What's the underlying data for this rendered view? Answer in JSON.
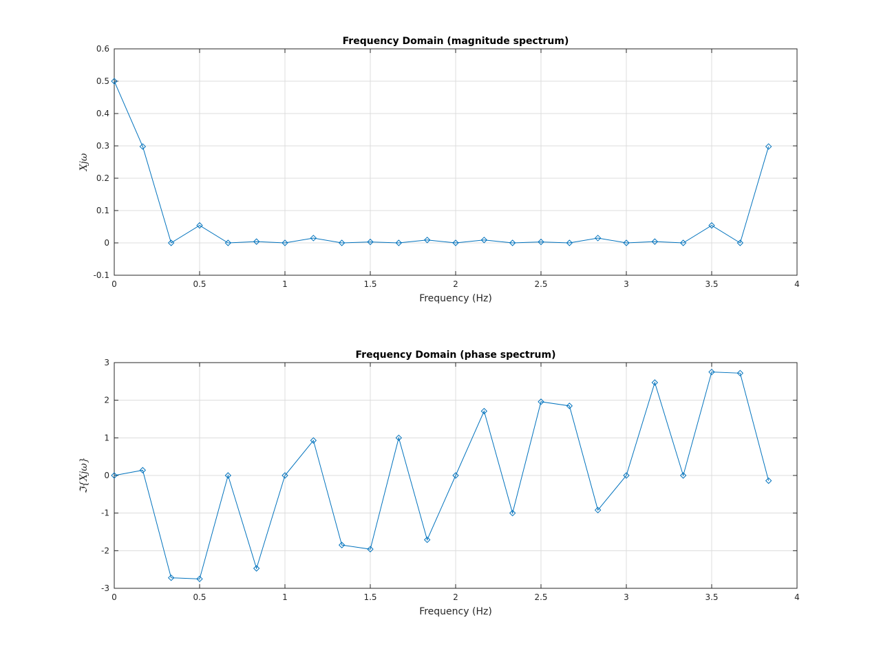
{
  "figure": {
    "background": "#ffffff"
  },
  "chart_data": [
    {
      "type": "line",
      "title": "Frequency Domain (magnitude spectrum)",
      "xlabel": "Frequency (Hz)",
      "ylabel": "Xjω",
      "xlim": [
        0,
        4
      ],
      "ylim": [
        -0.1,
        0.6
      ],
      "xticks": [
        "0",
        "0.5",
        "1",
        "1.5",
        "2",
        "2.5",
        "3",
        "3.5",
        "4"
      ],
      "yticks": [
        "-0.1",
        "0",
        "0.1",
        "0.2",
        "0.3",
        "0.4",
        "0.5",
        "0.6"
      ],
      "grid": true,
      "marker": "diamond",
      "color": "#0072BD",
      "x": [
        0,
        0.1667,
        0.3333,
        0.5,
        0.6667,
        0.8333,
        1,
        1.1667,
        1.3333,
        1.5,
        1.6667,
        1.8333,
        2,
        2.1667,
        2.3333,
        2.5,
        2.6667,
        2.8333,
        3,
        3.1667,
        3.3333,
        3.5,
        3.6667,
        3.8333
      ],
      "y": [
        0.5,
        0.298,
        0.0,
        0.054,
        0.0,
        0.004,
        0.0,
        0.015,
        0.0,
        0.003,
        0.0,
        0.009,
        0.0,
        0.009,
        0.0,
        0.003,
        0.0,
        0.015,
        0.0,
        0.004,
        0.0,
        0.054,
        0.0,
        0.298
      ]
    },
    {
      "type": "line",
      "title": "Frequency Domain (phase spectrum)",
      "xlabel": "Frequency (Hz)",
      "ylabel": "ℑ{Xjω}",
      "xlim": [
        0,
        4
      ],
      "ylim": [
        -3,
        3
      ],
      "xticks": [
        "0",
        "0.5",
        "1",
        "1.5",
        "2",
        "2.5",
        "3",
        "3.5",
        "4"
      ],
      "yticks": [
        "-3",
        "-2",
        "-1",
        "0",
        "1",
        "2",
        "3"
      ],
      "grid": true,
      "marker": "diamond",
      "color": "#0072BD",
      "x": [
        0,
        0.1667,
        0.3333,
        0.5,
        0.6667,
        0.8333,
        1,
        1.1667,
        1.3333,
        1.5,
        1.6667,
        1.8333,
        2,
        2.1667,
        2.3333,
        2.5,
        2.6667,
        2.8333,
        3,
        3.1667,
        3.3333,
        3.5,
        3.6667,
        3.8333
      ],
      "y": [
        0.0,
        0.14,
        -2.72,
        -2.75,
        0.0,
        -2.47,
        0.0,
        0.93,
        -1.85,
        -1.96,
        1.0,
        -1.71,
        0.0,
        1.71,
        -1.0,
        1.96,
        1.85,
        -0.92,
        0.0,
        2.47,
        0.0,
        2.75,
        2.72,
        -0.14
      ]
    }
  ]
}
